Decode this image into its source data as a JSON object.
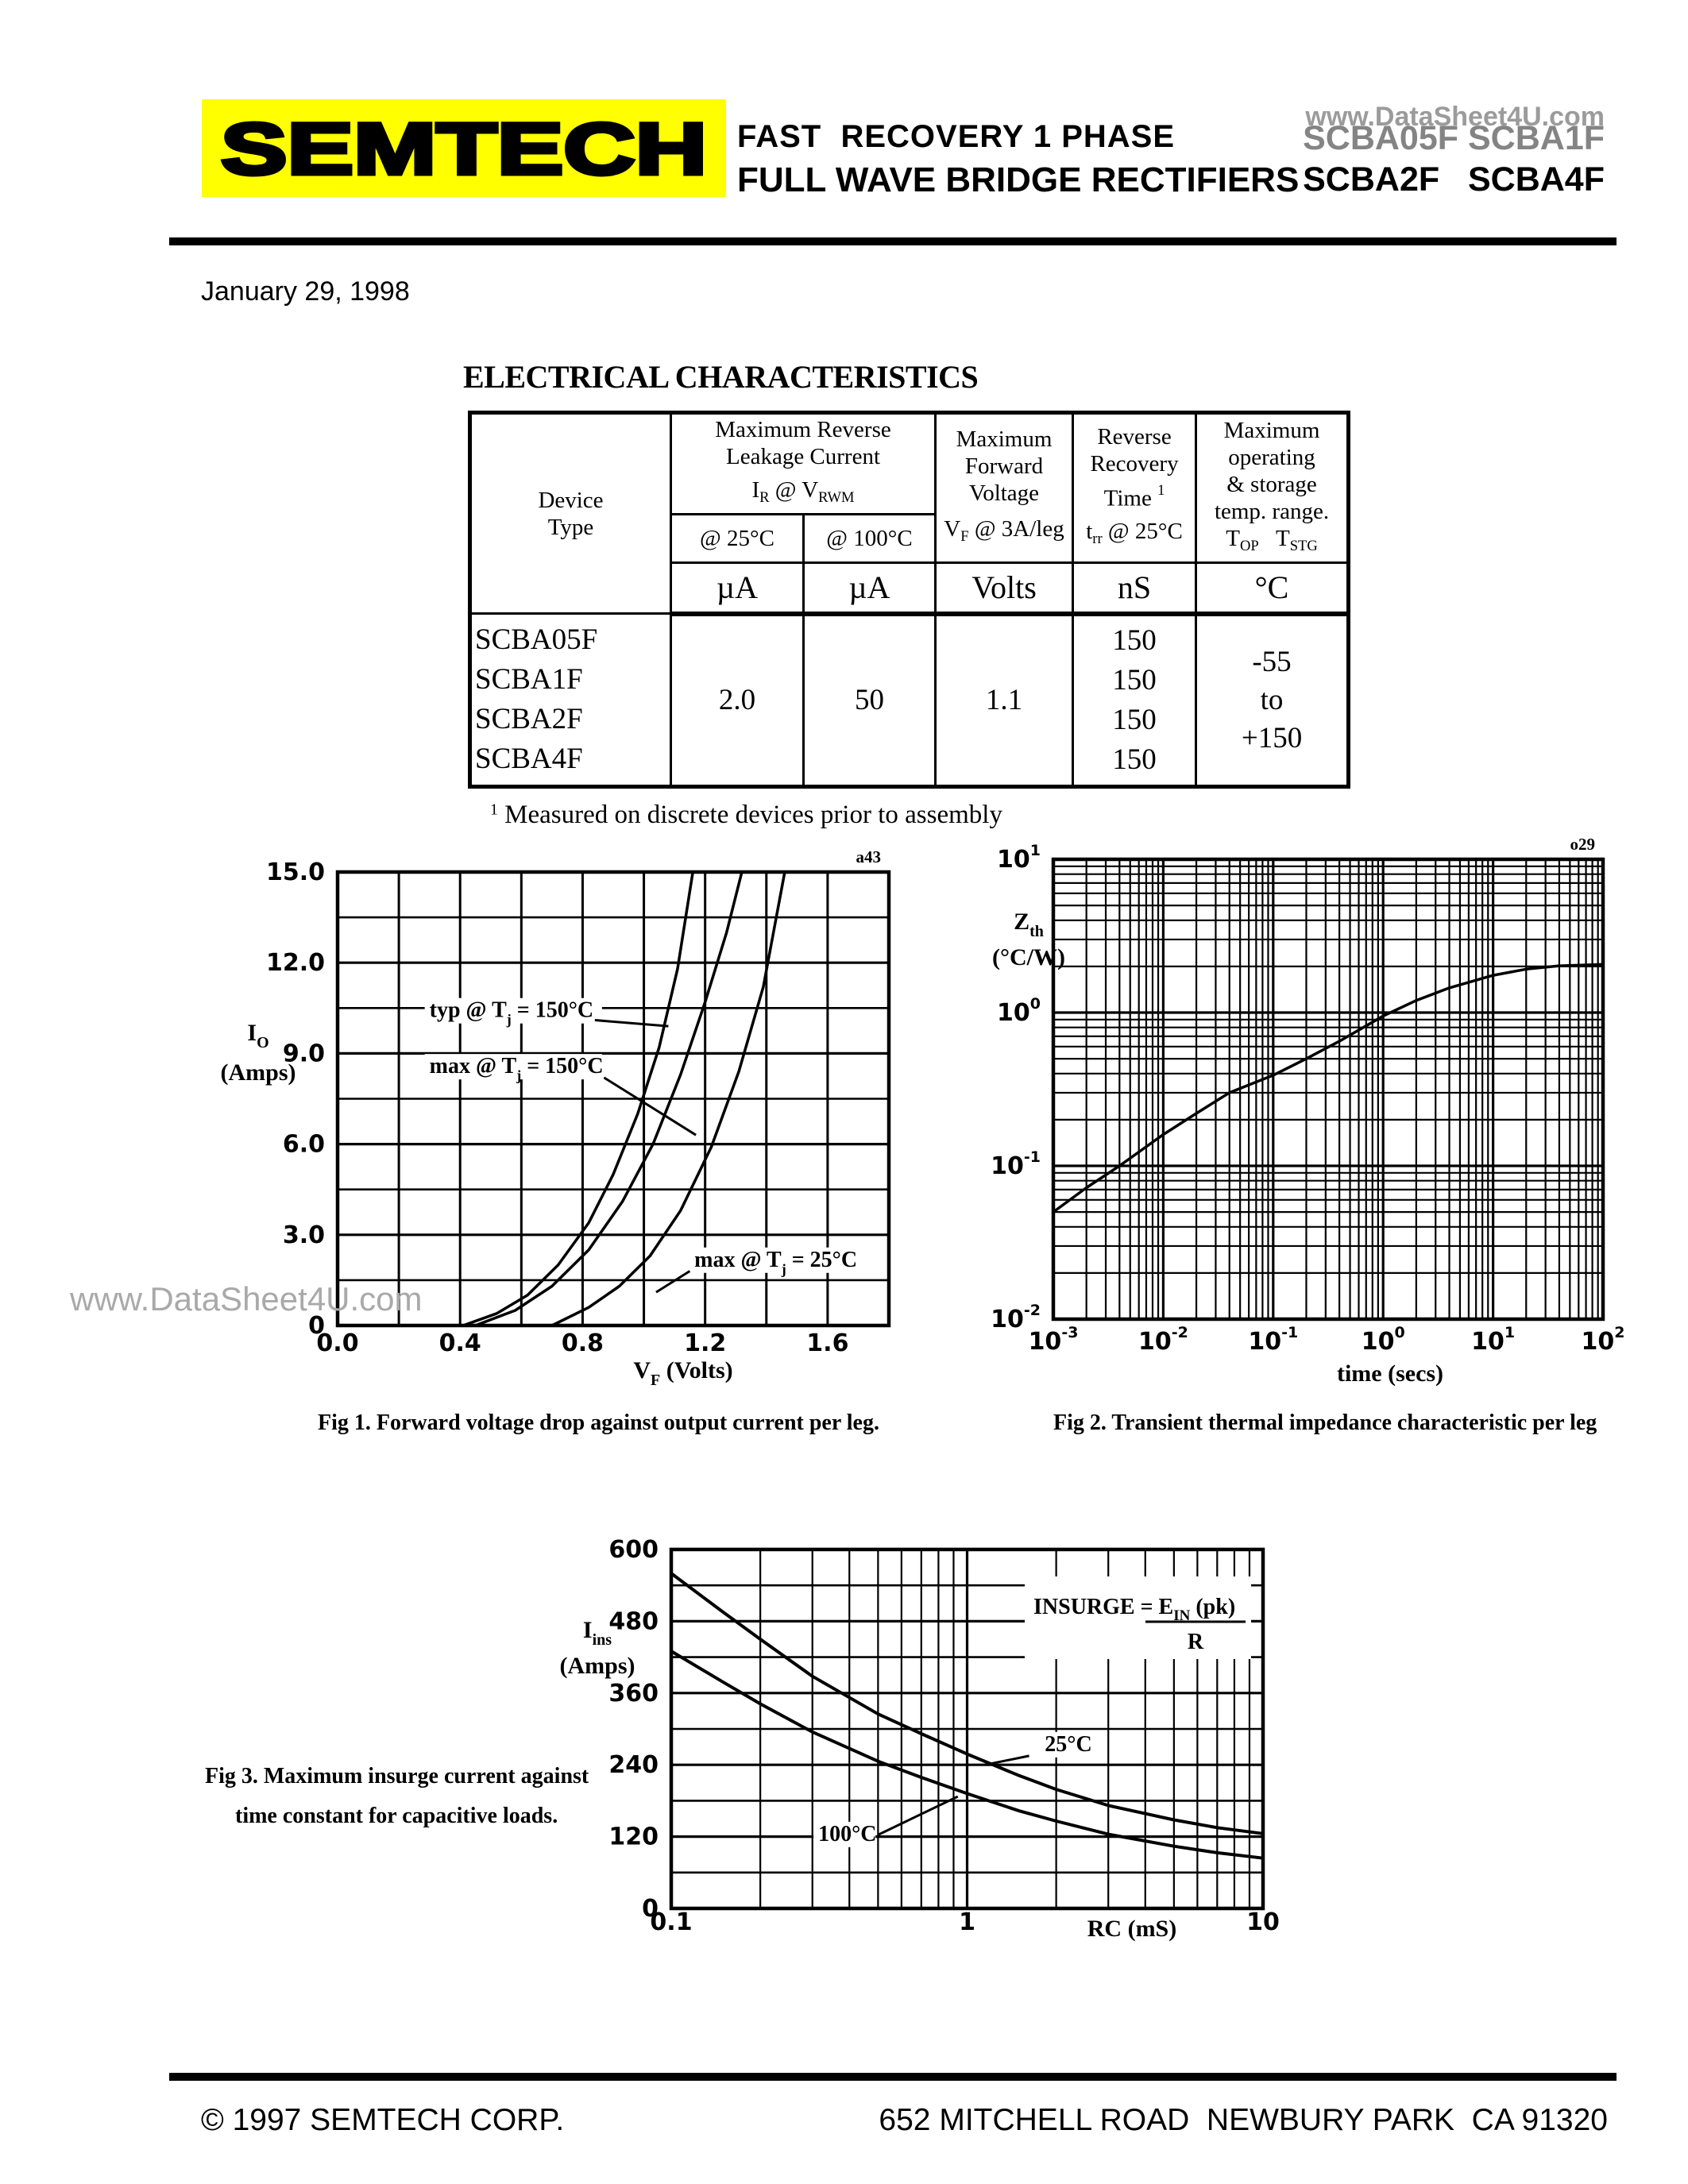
{
  "page": {
    "brand": "SEMTECH",
    "header": {
      "title_line1": "FAST  RECOVERY 1 PHASE",
      "title_line2": "FULL WAVE BRIDGE RECTIFIERS",
      "parts_line1": "SCBA05F SCBA1F",
      "parts_line2": "SCBA2F   SCBA4F",
      "watermark": "www.DataSheet4U.com"
    },
    "date": "January 29, 1998",
    "section_title": "ELECTRICAL CHARACTERISTICS",
    "footnote": {
      "sup": "1",
      "text": " Measured on discrete devices prior to assembly"
    },
    "watermark_side": "www.DataSheet4U.com",
    "footer": {
      "left": "© 1997 SEMTECH CORP.",
      "right": "652 MITCHELL ROAD  NEWBURY PARK  CA 91320"
    },
    "colors": {
      "brand_bg": "#FFFF00",
      "brand_fill": "#FFFFFF",
      "ink": "#000000",
      "watermark": "#9B9B9B",
      "faded_parts": "#848484"
    }
  },
  "table": {
    "col_device": {
      "l1": "Device",
      "l2": "Type"
    },
    "col_leakage": {
      "l1": "Maximum Reverse",
      "l2": "Leakage Current",
      "sym_pre": "I",
      "sym_sub": "R",
      "sym_mid": " @ V",
      "sym_sub2": "RWM",
      "sub25": "@ 25°C",
      "sub100": "@ 100°C"
    },
    "col_vf": {
      "l1": "Maximum",
      "l2": "Forward",
      "l3": "Voltage",
      "sym_pre": "V",
      "sym_sub": "F",
      "sym_post": " @ 3A/leg"
    },
    "col_trr": {
      "l1": "Reverse",
      "l2": "Recovery",
      "l3": "Time",
      "l3_sup": "1",
      "sym_pre": "t",
      "sym_sub": "rr",
      "sym_post": " @ 25°C"
    },
    "col_temp": {
      "l1": "Maximum",
      "l2": "operating",
      "l3": "& storage",
      "l4": "temp. range.",
      "sym_pre": "T",
      "sym_sub": "OP",
      "sym_mid": "   T",
      "sym_sub2": "STG"
    },
    "units": {
      "u1": "µA",
      "u2": "µA",
      "u3": "Volts",
      "u4": "nS",
      "u5": "°C"
    },
    "rows": {
      "devices": [
        "SCBA05F",
        "SCBA1F",
        "SCBA2F",
        "SCBA4F"
      ],
      "ir25": "2.0",
      "ir100": "50",
      "vf": "1.1",
      "trr": [
        "150",
        "150",
        "150",
        "150"
      ],
      "temp": [
        "-55",
        "to",
        "+150"
      ]
    }
  },
  "chart_data": [
    {
      "id": "fig1",
      "type": "line",
      "title": "Fig 1.   Forward voltage drop against output current per leg.",
      "corner_tag": "a43",
      "xlabel": {
        "pre": "V",
        "sub": "F",
        "post": "  (Volts)"
      },
      "ylabel": {
        "pre": "I",
        "sub": "O",
        "line2": "(Amps)"
      },
      "x_axis": {
        "min": 0,
        "max": 1.8,
        "grid_step": 0.2,
        "ticks": [
          {
            "v": 0,
            "label": "0.0"
          },
          {
            "v": 0.4,
            "label": "0.4"
          },
          {
            "v": 0.8,
            "label": "0.8"
          },
          {
            "v": 1.2,
            "label": "1.2"
          },
          {
            "v": 1.6,
            "label": "1.6"
          }
        ]
      },
      "y_axis": {
        "min": 0,
        "max": 15,
        "grid_step": 1.5,
        "ticks": [
          {
            "v": 15,
            "label": "15.0"
          },
          {
            "v": 12,
            "label": "12.0"
          },
          {
            "v": 9,
            "label": "9.0"
          },
          {
            "v": 6,
            "label": "6.0"
          },
          {
            "v": 3,
            "label": "3.0"
          },
          {
            "v": 0,
            "label": "0"
          }
        ]
      },
      "series": [
        {
          "name": "typ @ Tj = 150°C",
          "points": [
            [
              0.41,
              0
            ],
            [
              0.52,
              0.4
            ],
            [
              0.62,
              1.0
            ],
            [
              0.72,
              2.0
            ],
            [
              0.82,
              3.4
            ],
            [
              0.9,
              5.0
            ],
            [
              0.98,
              7.0
            ],
            [
              1.05,
              9.2
            ],
            [
              1.11,
              11.8
            ],
            [
              1.16,
              15
            ]
          ]
        },
        {
          "name": "max @ Tj = 150°C",
          "points": [
            [
              0.45,
              0
            ],
            [
              0.58,
              0.5
            ],
            [
              0.7,
              1.3
            ],
            [
              0.82,
              2.5
            ],
            [
              0.93,
              4.1
            ],
            [
              1.03,
              6.0
            ],
            [
              1.12,
              8.3
            ],
            [
              1.2,
              10.7
            ],
            [
              1.27,
              13.0
            ],
            [
              1.32,
              15
            ]
          ]
        },
        {
          "name": "max @ Tj = 25°C",
          "points": [
            [
              0.7,
              0
            ],
            [
              0.82,
              0.6
            ],
            [
              0.92,
              1.3
            ],
            [
              1.02,
              2.3
            ],
            [
              1.12,
              3.8
            ],
            [
              1.22,
              5.9
            ],
            [
              1.31,
              8.4
            ],
            [
              1.39,
              11.2
            ],
            [
              1.46,
              15
            ]
          ]
        }
      ],
      "annotations": [
        {
          "pre": "typ @ T",
          "sub": "j",
          "post": " = 150°C",
          "tx": 0.3,
          "ty": 10.2,
          "leader": [
            0.84,
            10.1,
            1.08,
            9.9
          ]
        },
        {
          "pre": "max @ T",
          "sub": "j",
          "post": " = 150°C",
          "tx": 0.3,
          "ty": 8.35,
          "leader": [
            0.87,
            8.2,
            1.17,
            6.3
          ]
        },
        {
          "pre": "max @ T",
          "sub": "j",
          "post": " = 25°C",
          "tx": 1.165,
          "ty": 1.95,
          "leader": [
            1.15,
            1.8,
            1.04,
            1.1
          ]
        }
      ]
    },
    {
      "id": "fig2",
      "type": "line",
      "xscale": "log",
      "yscale": "log",
      "title": "Fig 2.  Transient thermal impedance characteristic per leg",
      "corner_tag": "o29",
      "xlabel": "time  (secs)",
      "ylabel": {
        "pre": "Z",
        "sub": "th",
        "line2": "(°C/W)"
      },
      "x_axis": {
        "exp_min": -3,
        "exp_max": 2
      },
      "y_axis": {
        "exp_min": -2,
        "exp_max": 1
      },
      "series": [
        {
          "name": "Zth transient thermal impedance",
          "points": [
            [
              0.001,
              0.05
            ],
            [
              0.002,
              0.072
            ],
            [
              0.004,
              0.1
            ],
            [
              0.01,
              0.16
            ],
            [
              0.02,
              0.22
            ],
            [
              0.04,
              0.3
            ],
            [
              0.1,
              0.39
            ],
            [
              0.2,
              0.5
            ],
            [
              0.4,
              0.65
            ],
            [
              1,
              0.95
            ],
            [
              2,
              1.2
            ],
            [
              4,
              1.45
            ],
            [
              10,
              1.75
            ],
            [
              20,
              1.92
            ],
            [
              40,
              2.02
            ],
            [
              100,
              2.06
            ]
          ]
        }
      ],
      "annotations": []
    },
    {
      "id": "fig3",
      "type": "line",
      "xscale": "log",
      "title": "Fig 3.  Maximum insurge current against time constant for capacitive loads.",
      "title_lines": [
        "Fig 3.  Maximum insurge current against",
        "time constant for capacitive loads."
      ],
      "xlabel": "RC   (mS)",
      "ylabel": {
        "pre": "I",
        "sub": "ins",
        "line2": "(Amps)"
      },
      "x_axis": {
        "exp_min": -1,
        "exp_max": 1,
        "ticks": [
          {
            "v": 0.1,
            "label": "0.1"
          },
          {
            "v": 1,
            "label": "1"
          },
          {
            "v": 10,
            "label": "10"
          }
        ]
      },
      "y_axis": {
        "min": 0,
        "max": 600,
        "grid_step": 60,
        "ticks": [
          {
            "v": 600,
            "label": "600"
          },
          {
            "v": 480,
            "label": "480"
          },
          {
            "v": 360,
            "label": "360"
          },
          {
            "v": 240,
            "label": "240"
          },
          {
            "v": 120,
            "label": "120"
          },
          {
            "v": 0,
            "label": "0"
          }
        ]
      },
      "formula": {
        "lhs": "INSURGE = ",
        "num_pre": "E",
        "num_sub": "IN",
        "num_post": " (pk)",
        "den": "R"
      },
      "series": [
        {
          "name": "25°C",
          "points": [
            [
              0.1,
              560
            ],
            [
              0.15,
              495
            ],
            [
              0.2,
              450
            ],
            [
              0.3,
              388
            ],
            [
              0.5,
              325
            ],
            [
              0.7,
              292
            ],
            [
              1.0,
              258
            ],
            [
              1.5,
              222
            ],
            [
              2,
              199
            ],
            [
              3,
              172
            ],
            [
              5,
              148
            ],
            [
              7,
              135
            ],
            [
              10,
              125
            ]
          ]
        },
        {
          "name": "100°C",
          "points": [
            [
              0.1,
              430
            ],
            [
              0.15,
              378
            ],
            [
              0.2,
              342
            ],
            [
              0.3,
              295
            ],
            [
              0.5,
              246
            ],
            [
              0.7,
              219
            ],
            [
              1.0,
              192
            ],
            [
              1.5,
              163
            ],
            [
              2,
              146
            ],
            [
              3,
              124
            ],
            [
              5,
              104
            ],
            [
              7,
              93
            ],
            [
              10,
              84
            ]
          ]
        }
      ],
      "annotations": [
        {
          "pre": "25",
          "post": "°C",
          "tx": 1.83,
          "ty": 263,
          "leader": [
            1.62,
            255,
            1.15,
            240
          ]
        },
        {
          "pre": "100",
          "post": "°C",
          "tx": 0.314,
          "ty": 113,
          "leader": [
            0.5,
            123,
            0.93,
            187
          ]
        }
      ]
    }
  ]
}
